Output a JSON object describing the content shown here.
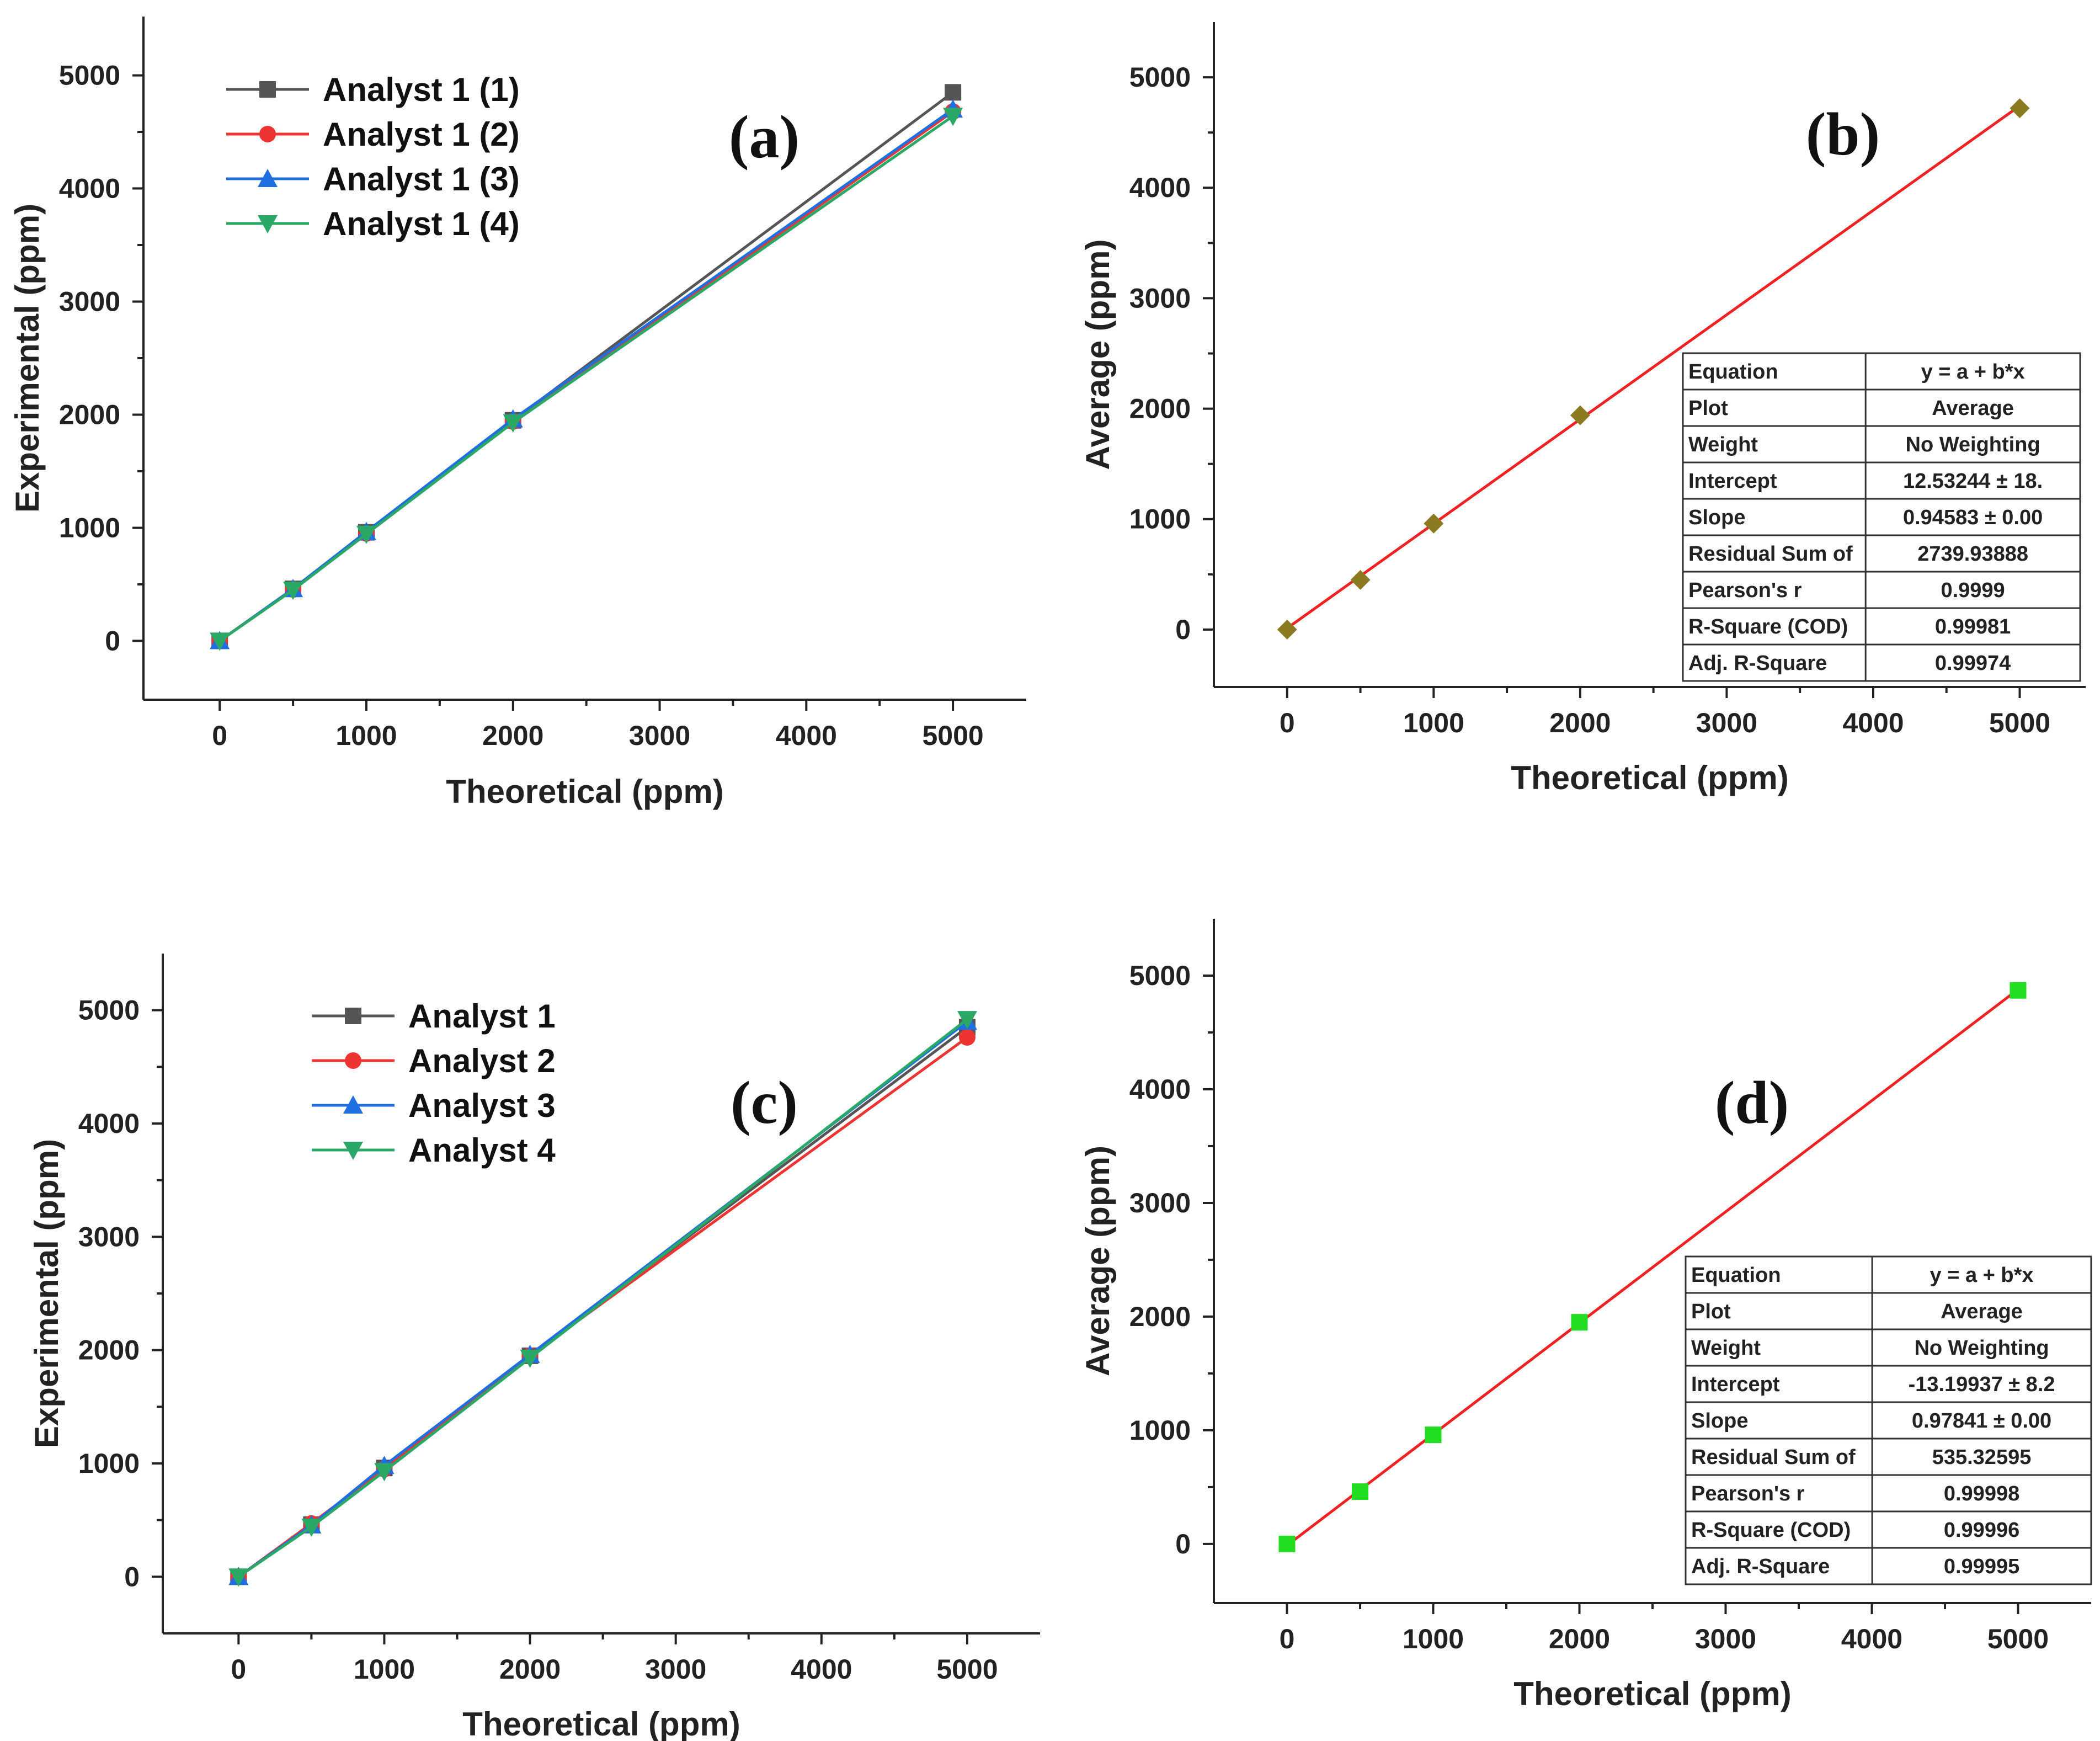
{
  "chart_data": [
    {
      "type": "line",
      "panel_label": "(a)",
      "xlabel": "Theoretical (ppm)",
      "ylabel": "Experimental (ppm)",
      "xlim": [
        -520,
        5500
      ],
      "ylim": [
        -520,
        5520
      ],
      "xticks": [
        0,
        1000,
        2000,
        3000,
        4000,
        5000
      ],
      "yticks": [
        0,
        1000,
        2000,
        3000,
        4000,
        5000
      ],
      "legend_position": "top-left",
      "x": [
        0,
        500,
        1000,
        2000,
        5000
      ],
      "series": [
        {
          "name": "Analyst 1 (1)",
          "color": "#555555",
          "marker": "square",
          "values": [
            0,
            460,
            960,
            1950,
            4850
          ]
        },
        {
          "name": "Analyst 1 (2)",
          "color": "#ee3333",
          "marker": "circle",
          "values": [
            0,
            455,
            950,
            1940,
            4680
          ]
        },
        {
          "name": "Analyst 1 (3)",
          "color": "#1f6fe0",
          "marker": "triangle-up",
          "values": [
            0,
            460,
            965,
            1960,
            4700
          ]
        },
        {
          "name": "Analyst 1 (4)",
          "color": "#2aa866",
          "marker": "triangle-down",
          "values": [
            0,
            450,
            945,
            1930,
            4640
          ]
        }
      ]
    },
    {
      "type": "scatter",
      "panel_label": "(b)",
      "xlabel": "Theoretical (ppm)",
      "ylabel": "Average (ppm)",
      "xlim": [
        -500,
        5450
      ],
      "ylim": [
        -520,
        5500
      ],
      "xticks": [
        0,
        1000,
        2000,
        3000,
        4000,
        5000
      ],
      "yticks": [
        0,
        1000,
        2000,
        3000,
        4000,
        5000
      ],
      "x": [
        0,
        500,
        1000,
        2000,
        5000
      ],
      "series": [
        {
          "name": "Average",
          "color": "#8a7a20",
          "marker": "diamond",
          "values": [
            0,
            450,
            960,
            1940,
            4720
          ]
        }
      ],
      "fit": {
        "intercept": 12.53244,
        "slope": 0.94583,
        "color": "#ee2222"
      },
      "fit_table": [
        [
          "Equation",
          "y = a + b*x"
        ],
        [
          "Plot",
          "Average"
        ],
        [
          "Weight",
          "No Weighting"
        ],
        [
          "Intercept",
          "12.53244 ± 18."
        ],
        [
          "Slope",
          "0.94583 ± 0.00"
        ],
        [
          "Residual Sum of",
          "2739.93888"
        ],
        [
          "Pearson's r",
          "0.9999"
        ],
        [
          "R-Square (COD)",
          "0.99981"
        ],
        [
          "Adj. R-Square",
          "0.99974"
        ]
      ]
    },
    {
      "type": "line",
      "panel_label": "(c)",
      "xlabel": "Theoretical (ppm)",
      "ylabel": "Experimental (ppm)",
      "xlim": [
        -520,
        5500
      ],
      "ylim": [
        -500,
        5500
      ],
      "xticks": [
        0,
        1000,
        2000,
        3000,
        4000,
        5000
      ],
      "yticks": [
        0,
        1000,
        2000,
        3000,
        4000,
        5000
      ],
      "legend_position": "top-left",
      "x": [
        0,
        500,
        1000,
        2000,
        5000
      ],
      "series": [
        {
          "name": "Analyst 1",
          "color": "#555555",
          "marker": "square",
          "values": [
            0,
            460,
            960,
            1950,
            4850
          ]
        },
        {
          "name": "Analyst 2",
          "color": "#ee3333",
          "marker": "circle",
          "values": [
            0,
            470,
            950,
            1950,
            4760
          ]
        },
        {
          "name": "Analyst 3",
          "color": "#1f6fe0",
          "marker": "triangle-up",
          "values": [
            0,
            455,
            980,
            1960,
            4900
          ]
        },
        {
          "name": "Analyst 4",
          "color": "#2aa866",
          "marker": "triangle-down",
          "values": [
            0,
            440,
            930,
            1930,
            4920
          ]
        }
      ]
    },
    {
      "type": "scatter",
      "panel_label": "(d)",
      "xlabel": "Theoretical (ppm)",
      "ylabel": "Average (ppm)",
      "xlim": [
        -500,
        5500
      ],
      "ylim": [
        -520,
        5500
      ],
      "xticks": [
        0,
        1000,
        2000,
        3000,
        4000,
        5000
      ],
      "yticks": [
        0,
        1000,
        2000,
        3000,
        4000,
        5000
      ],
      "x": [
        0,
        500,
        1000,
        2000,
        5000
      ],
      "series": [
        {
          "name": "Average",
          "color": "#22dd22",
          "marker": "square",
          "values": [
            0,
            460,
            960,
            1950,
            4870
          ]
        }
      ],
      "fit": {
        "intercept": -13.19937,
        "slope": 0.97841,
        "color": "#ee2222"
      },
      "fit_table": [
        [
          "Equation",
          "y = a + b*x"
        ],
        [
          "Plot",
          "Average"
        ],
        [
          "Weight",
          "No Weighting"
        ],
        [
          "Intercept",
          "-13.19937 ± 8.2"
        ],
        [
          "Slope",
          "0.97841 ± 0.00"
        ],
        [
          "Residual Sum of",
          "535.32595"
        ],
        [
          "Pearson's r",
          "0.99998"
        ],
        [
          "R-Square (COD)",
          "0.99996"
        ],
        [
          "Adj. R-Square",
          "0.99995"
        ]
      ]
    }
  ]
}
